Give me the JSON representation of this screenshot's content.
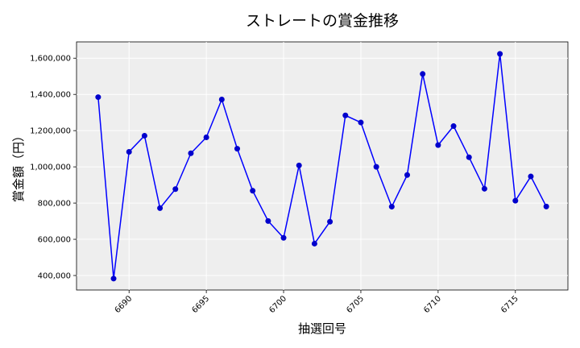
{
  "chart_data": {
    "type": "line",
    "title": "ストレートの賞金推移",
    "xlabel": "抽選回号",
    "ylabel": "賞金額（円）",
    "x_ticks": [
      "6690",
      "6695",
      "6700",
      "6705",
      "6710",
      "6715"
    ],
    "y_ticks": [
      "400,000",
      "600,000",
      "800,000",
      "1,000,000",
      "1,200,000",
      "1,400,000",
      "1,600,000"
    ],
    "xlim": [
      6686.6,
      6718.4
    ],
    "ylim": [
      320000,
      1690000
    ],
    "grid": true,
    "legend": "none",
    "colors": {
      "line": "#0000ff",
      "marker": "#0000cc",
      "plot_bg": "#eeeeee",
      "grid": "#ffffff"
    },
    "x": [
      6688,
      6689,
      6690,
      6691,
      6692,
      6693,
      6694,
      6695,
      6696,
      6697,
      6698,
      6699,
      6700,
      6701,
      6702,
      6703,
      6704,
      6705,
      6706,
      6707,
      6708,
      6709,
      6710,
      6711,
      6712,
      6713,
      6714,
      6715,
      6716,
      6717
    ],
    "values": [
      1385000,
      383000,
      1083000,
      1172000,
      772000,
      877000,
      1075000,
      1163000,
      1372000,
      1100000,
      868000,
      701000,
      608000,
      1008000,
      576000,
      697000,
      1284000,
      1245000,
      1000000,
      780000,
      955000,
      1513000,
      1120000,
      1225000,
      1053000,
      879000,
      1624000,
      813000,
      947000,
      781000
    ]
  }
}
